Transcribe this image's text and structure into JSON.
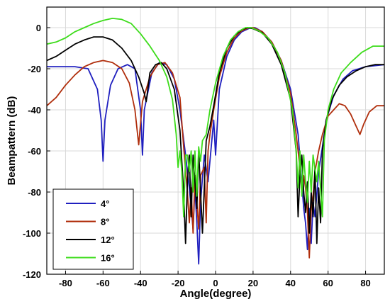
{
  "chart_data": {
    "type": "line",
    "title": "",
    "xlabel": "Angle(degree)",
    "ylabel": "Beampattern (dB)",
    "xlim": [
      -90,
      90
    ],
    "ylim": [
      -120,
      10
    ],
    "xticks": [
      -80,
      -60,
      -40,
      -20,
      0,
      20,
      40,
      60,
      80
    ],
    "yticks": [
      0,
      -20,
      -40,
      -60,
      -80,
      -100,
      -120
    ],
    "grid": true,
    "legend_position": "bottom-left",
    "series": [
      {
        "name": "4°",
        "color": "#1f1fbf",
        "points": [
          [
            -90,
            -19
          ],
          [
            -75,
            -19
          ],
          [
            -68,
            -20
          ],
          [
            -63,
            -30
          ],
          [
            -61,
            -45
          ],
          [
            -60,
            -65
          ],
          [
            -59,
            -45
          ],
          [
            -56,
            -28
          ],
          [
            -52,
            -20
          ],
          [
            -47,
            -18
          ],
          [
            -43,
            -20
          ],
          [
            -40,
            -40
          ],
          [
            -39,
            -62
          ],
          [
            -38,
            -40
          ],
          [
            -34,
            -22
          ],
          [
            -30,
            -17
          ],
          [
            -26,
            -18
          ],
          [
            -22,
            -25
          ],
          [
            -19,
            -40
          ],
          [
            -16,
            -62
          ],
          [
            -14,
            -78
          ],
          [
            -12,
            -98
          ],
          [
            -11,
            -78
          ],
          [
            -10,
            -95
          ],
          [
            -9,
            -115
          ],
          [
            -8,
            -85
          ],
          [
            -6,
            -62
          ],
          [
            -4,
            -75
          ],
          [
            -2,
            -55
          ],
          [
            -1,
            -45
          ],
          [
            0,
            -62
          ],
          [
            2,
            -30
          ],
          [
            6,
            -14
          ],
          [
            10,
            -6
          ],
          [
            14,
            -2
          ],
          [
            18,
            -0.3
          ],
          [
            21,
            0
          ],
          [
            25,
            -2
          ],
          [
            30,
            -7
          ],
          [
            35,
            -16
          ],
          [
            40,
            -30
          ],
          [
            44,
            -52
          ],
          [
            46,
            -75
          ],
          [
            47,
            -88
          ],
          [
            48,
            -95
          ],
          [
            49,
            -108
          ],
          [
            50,
            -88
          ],
          [
            51,
            -105
          ],
          [
            52,
            -85
          ],
          [
            53,
            -92
          ],
          [
            55,
            -70
          ],
          [
            57,
            -58
          ],
          [
            59,
            -45
          ],
          [
            63,
            -33
          ],
          [
            68,
            -25
          ],
          [
            73,
            -21
          ],
          [
            80,
            -19
          ],
          [
            90,
            -18
          ]
        ]
      },
      {
        "name": "8°",
        "color": "#b02e0c",
        "points": [
          [
            -90,
            -38
          ],
          [
            -85,
            -34
          ],
          [
            -80,
            -28
          ],
          [
            -75,
            -23
          ],
          [
            -70,
            -19
          ],
          [
            -65,
            -17
          ],
          [
            -60,
            -16
          ],
          [
            -55,
            -17
          ],
          [
            -50,
            -20
          ],
          [
            -46,
            -27
          ],
          [
            -43,
            -40
          ],
          [
            -41,
            -57
          ],
          [
            -39,
            -36
          ],
          [
            -35,
            -24
          ],
          [
            -31,
            -18
          ],
          [
            -27,
            -17
          ],
          [
            -23,
            -22
          ],
          [
            -19,
            -34
          ],
          [
            -17,
            -58
          ],
          [
            -15,
            -80
          ],
          [
            -14,
            -95
          ],
          [
            -13,
            -78
          ],
          [
            -12,
            -100
          ],
          [
            -11,
            -72
          ],
          [
            -10,
            -85
          ],
          [
            -9,
            -98
          ],
          [
            -8,
            -72
          ],
          [
            -6,
            -68
          ],
          [
            -5,
            -95
          ],
          [
            -4,
            -60
          ],
          [
            -3,
            -52
          ],
          [
            -1,
            -40
          ],
          [
            2,
            -24
          ],
          [
            6,
            -12
          ],
          [
            10,
            -5
          ],
          [
            14,
            -1.5
          ],
          [
            18,
            0
          ],
          [
            20,
            0
          ],
          [
            25,
            -2
          ],
          [
            30,
            -7
          ],
          [
            35,
            -16
          ],
          [
            40,
            -32
          ],
          [
            43,
            -52
          ],
          [
            45,
            -68
          ],
          [
            46,
            -80
          ],
          [
            47,
            -72
          ],
          [
            48,
            -78
          ],
          [
            49,
            -90
          ],
          [
            50,
            -112
          ],
          [
            51,
            -88
          ],
          [
            52,
            -82
          ],
          [
            53,
            -70
          ],
          [
            55,
            -60
          ],
          [
            57,
            -52
          ],
          [
            60,
            -43
          ],
          [
            63,
            -40
          ],
          [
            66,
            -37
          ],
          [
            69,
            -38
          ],
          [
            72,
            -42
          ],
          [
            75,
            -48
          ],
          [
            77,
            -52
          ],
          [
            79,
            -47
          ],
          [
            82,
            -41
          ],
          [
            86,
            -38
          ],
          [
            90,
            -38
          ]
        ]
      },
      {
        "name": "12°",
        "color": "#000000",
        "points": [
          [
            -90,
            -16
          ],
          [
            -85,
            -14
          ],
          [
            -80,
            -11
          ],
          [
            -75,
            -8
          ],
          [
            -70,
            -6
          ],
          [
            -65,
            -4.5
          ],
          [
            -60,
            -4.5
          ],
          [
            -55,
            -6
          ],
          [
            -50,
            -10
          ],
          [
            -45,
            -16
          ],
          [
            -41,
            -24
          ],
          [
            -38,
            -32
          ],
          [
            -37,
            -36
          ],
          [
            -35,
            -22
          ],
          [
            -32,
            -18
          ],
          [
            -29,
            -17
          ],
          [
            -26,
            -20
          ],
          [
            -22,
            -30
          ],
          [
            -19,
            -50
          ],
          [
            -17,
            -80
          ],
          [
            -16,
            -105
          ],
          [
            -15,
            -75
          ],
          [
            -14,
            -62
          ],
          [
            -13,
            -92
          ],
          [
            -12,
            -62
          ],
          [
            -10,
            -88
          ],
          [
            -9,
            -60
          ],
          [
            -7,
            -100
          ],
          [
            -5,
            -55
          ],
          [
            -3,
            -48
          ],
          [
            -1,
            -38
          ],
          [
            2,
            -22
          ],
          [
            6,
            -10
          ],
          [
            10,
            -4
          ],
          [
            14,
            -1
          ],
          [
            17,
            0
          ],
          [
            20,
            -0.5
          ],
          [
            25,
            -2.5
          ],
          [
            30,
            -8
          ],
          [
            35,
            -18
          ],
          [
            40,
            -35
          ],
          [
            43,
            -60
          ],
          [
            44,
            -92
          ],
          [
            45,
            -72
          ],
          [
            46,
            -62
          ],
          [
            47,
            -80
          ],
          [
            48,
            -90
          ],
          [
            49,
            -75
          ],
          [
            50,
            -100
          ],
          [
            51,
            -80
          ],
          [
            52,
            -92
          ],
          [
            53,
            -68
          ],
          [
            54,
            -105
          ],
          [
            55,
            -78
          ],
          [
            56,
            -95
          ],
          [
            57,
            -60
          ],
          [
            59,
            -45
          ],
          [
            62,
            -35
          ],
          [
            66,
            -28
          ],
          [
            70,
            -24
          ],
          [
            75,
            -21
          ],
          [
            80,
            -19
          ],
          [
            85,
            -18
          ],
          [
            90,
            -18
          ]
        ]
      },
      {
        "name": "16°",
        "color": "#3ddc1b",
        "points": [
          [
            -90,
            -8
          ],
          [
            -85,
            -7
          ],
          [
            -80,
            -5
          ],
          [
            -75,
            -2
          ],
          [
            -70,
            0
          ],
          [
            -65,
            2
          ],
          [
            -60,
            3.5
          ],
          [
            -55,
            4.5
          ],
          [
            -50,
            4
          ],
          [
            -45,
            2
          ],
          [
            -40,
            -3
          ],
          [
            -35,
            -9
          ],
          [
            -30,
            -16
          ],
          [
            -26,
            -24
          ],
          [
            -23,
            -35
          ],
          [
            -21,
            -52
          ],
          [
            -20,
            -68
          ],
          [
            -19,
            -60
          ],
          [
            -18,
            -70
          ],
          [
            -17,
            -92
          ],
          [
            -16,
            -62
          ],
          [
            -15,
            -62
          ],
          [
            -14,
            -70
          ],
          [
            -13,
            -60
          ],
          [
            -12,
            -80
          ],
          [
            -11,
            -60
          ],
          [
            -10,
            -82
          ],
          [
            -9,
            -58
          ],
          [
            -8,
            -65
          ],
          [
            -7,
            -55
          ],
          [
            -5,
            -52
          ],
          [
            -3,
            -40
          ],
          [
            0,
            -27
          ],
          [
            4,
            -14
          ],
          [
            8,
            -6
          ],
          [
            12,
            -2
          ],
          [
            16,
            0
          ],
          [
            19,
            0
          ],
          [
            23,
            -1.5
          ],
          [
            28,
            -5
          ],
          [
            33,
            -12
          ],
          [
            37,
            -22
          ],
          [
            41,
            -40
          ],
          [
            43,
            -60
          ],
          [
            44,
            -78
          ],
          [
            45,
            -60
          ],
          [
            46,
            -82
          ],
          [
            47,
            -62
          ],
          [
            48,
            -75
          ],
          [
            49,
            -85
          ],
          [
            50,
            -65
          ],
          [
            51,
            -80
          ],
          [
            52,
            -62
          ],
          [
            54,
            -75
          ],
          [
            55,
            -65
          ],
          [
            57,
            -92
          ],
          [
            58,
            -55
          ],
          [
            60,
            -40
          ],
          [
            63,
            -30
          ],
          [
            67,
            -22
          ],
          [
            72,
            -17
          ],
          [
            78,
            -12
          ],
          [
            84,
            -9
          ],
          [
            90,
            -9
          ]
        ]
      }
    ]
  }
}
